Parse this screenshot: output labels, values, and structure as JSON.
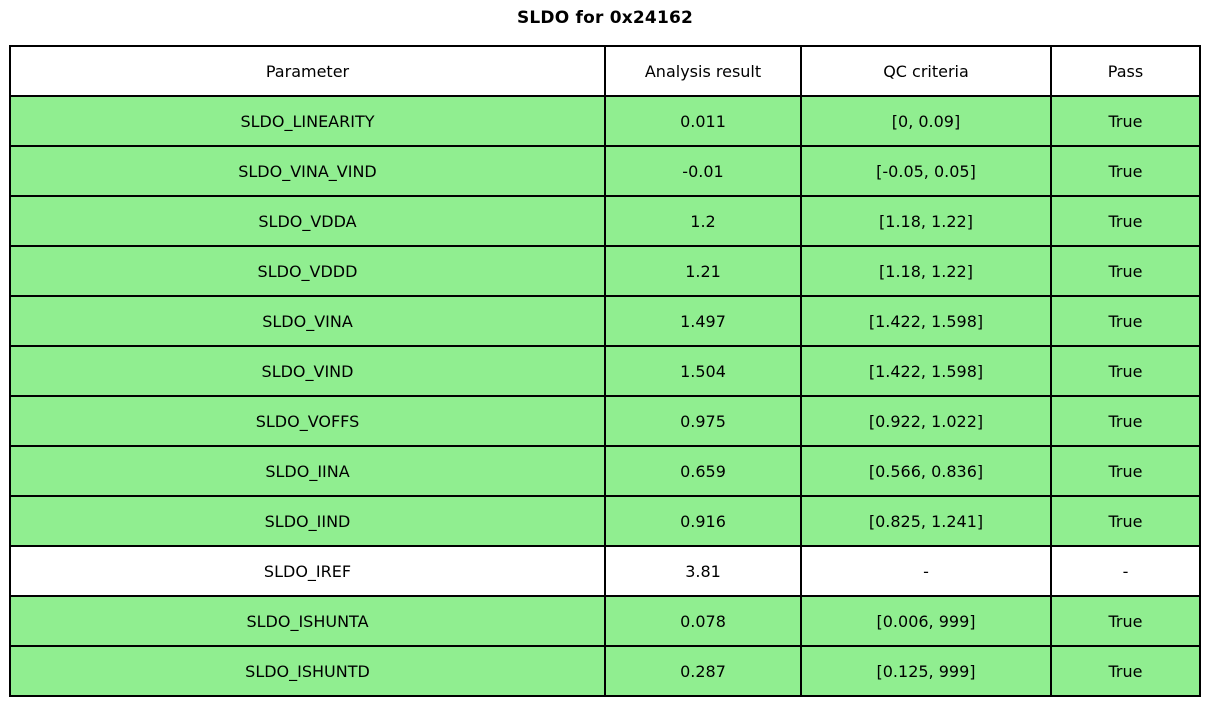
{
  "colors": {
    "pass_row_bg": "#90ee90",
    "neutral_row_bg": "#ffffff",
    "border": "#000000",
    "text": "#000000"
  },
  "chart_data": {
    "type": "table",
    "title": "SLDO for 0x24162",
    "columns": [
      "Parameter",
      "Analysis result",
      "QC criteria",
      "Pass"
    ],
    "rows": [
      {
        "parameter": "SLDO_LINEARITY",
        "result": "0.011",
        "criteria": "[0, 0.09]",
        "pass": "True",
        "pass_highlight": true
      },
      {
        "parameter": "SLDO_VINA_VIND",
        "result": "-0.01",
        "criteria": "[-0.05, 0.05]",
        "pass": "True",
        "pass_highlight": true
      },
      {
        "parameter": "SLDO_VDDA",
        "result": "1.2",
        "criteria": "[1.18, 1.22]",
        "pass": "True",
        "pass_highlight": true
      },
      {
        "parameter": "SLDO_VDDD",
        "result": "1.21",
        "criteria": "[1.18, 1.22]",
        "pass": "True",
        "pass_highlight": true
      },
      {
        "parameter": "SLDO_VINA",
        "result": "1.497",
        "criteria": "[1.422, 1.598]",
        "pass": "True",
        "pass_highlight": true
      },
      {
        "parameter": "SLDO_VIND",
        "result": "1.504",
        "criteria": "[1.422, 1.598]",
        "pass": "True",
        "pass_highlight": true
      },
      {
        "parameter": "SLDO_VOFFS",
        "result": "0.975",
        "criteria": "[0.922, 1.022]",
        "pass": "True",
        "pass_highlight": true
      },
      {
        "parameter": "SLDO_IINA",
        "result": "0.659",
        "criteria": "[0.566, 0.836]",
        "pass": "True",
        "pass_highlight": true
      },
      {
        "parameter": "SLDO_IIND",
        "result": "0.916",
        "criteria": "[0.825, 1.241]",
        "pass": "True",
        "pass_highlight": true
      },
      {
        "parameter": "SLDO_IREF",
        "result": "3.81",
        "criteria": "-",
        "pass": "-",
        "pass_highlight": false
      },
      {
        "parameter": "SLDO_ISHUNTA",
        "result": "0.078",
        "criteria": "[0.006, 999]",
        "pass": "True",
        "pass_highlight": true
      },
      {
        "parameter": "SLDO_ISHUNTD",
        "result": "0.287",
        "criteria": "[0.125, 999]",
        "pass": "True",
        "pass_highlight": true
      }
    ]
  }
}
